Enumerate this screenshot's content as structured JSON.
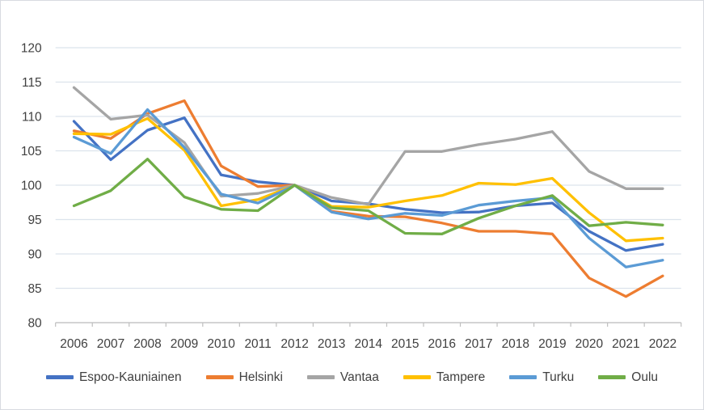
{
  "chart_data": {
    "type": "line",
    "title": "",
    "x": [
      "2006",
      "2007",
      "2008",
      "2009",
      "2010",
      "2011",
      "2012",
      "2013",
      "2014",
      "2015",
      "2016",
      "2017",
      "2018",
      "2019",
      "2020",
      "2021",
      "2022"
    ],
    "series": [
      {
        "name": "Espoo-Kauniainen",
        "color": "#4472C4",
        "values": [
          109.3,
          103.7,
          108.0,
          109.8,
          101.5,
          100.5,
          100.0,
          97.7,
          97.3,
          96.5,
          96.0,
          96.1,
          97.0,
          97.4,
          93.3,
          90.5,
          91.4
        ]
      },
      {
        "name": "Helsinki",
        "color": "#ED7D31",
        "values": [
          107.9,
          106.8,
          110.4,
          112.3,
          102.8,
          99.8,
          100.0,
          96.2,
          95.5,
          95.4,
          94.5,
          93.3,
          93.3,
          92.9,
          86.5,
          83.8,
          86.8
        ]
      },
      {
        "name": "Vantaa",
        "color": "#A5A5A5",
        "values": [
          114.2,
          109.6,
          110.2,
          106.2,
          98.4,
          98.8,
          100.0,
          98.2,
          97.2,
          104.9,
          104.9,
          105.9,
          106.7,
          107.8,
          102.0,
          99.5,
          99.5
        ]
      },
      {
        "name": "Tampere",
        "color": "#FFC000",
        "values": [
          107.5,
          107.4,
          109.7,
          105.1,
          97.0,
          97.9,
          100.0,
          96.9,
          96.8,
          97.7,
          98.5,
          100.3,
          100.1,
          101.0,
          96.0,
          91.9,
          92.3
        ]
      },
      {
        "name": "Turku",
        "color": "#5B9BD5",
        "values": [
          107.0,
          104.6,
          111.0,
          105.5,
          98.7,
          97.4,
          100.0,
          96.1,
          95.1,
          95.9,
          95.6,
          97.1,
          97.7,
          98.2,
          92.3,
          88.1,
          89.1
        ]
      },
      {
        "name": "Oulu",
        "color": "#70AD47",
        "values": [
          97.0,
          99.2,
          103.8,
          98.3,
          96.5,
          96.3,
          100.0,
          96.7,
          96.3,
          93.0,
          92.9,
          95.2,
          97.0,
          98.5,
          94.1,
          94.6,
          94.2
        ]
      }
    ],
    "ylim": [
      80,
      120
    ],
    "yticks": [
      80,
      85,
      90,
      95,
      100,
      105,
      110,
      115,
      120
    ],
    "grid": "horizontal",
    "legend_position": "bottom"
  },
  "style": {
    "grid_color": "#dce3ec",
    "axis_color": "#bfbfbf",
    "label_color": "#404040",
    "background": "#ffffff"
  }
}
